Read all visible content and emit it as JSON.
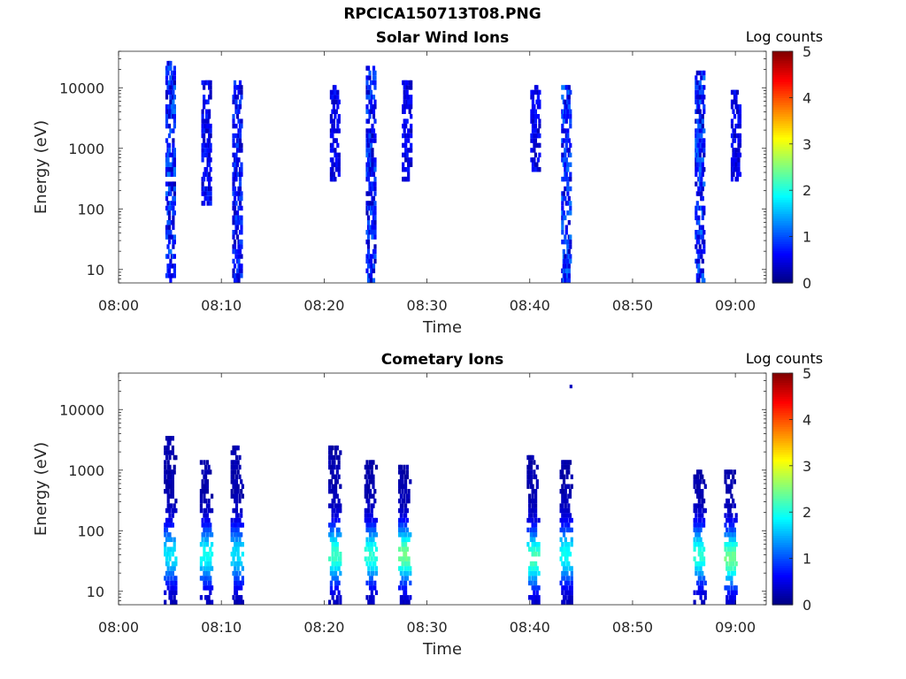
{
  "figure": {
    "suptitle": "RPCICA150713T08.PNG"
  },
  "chart_data": [
    {
      "type": "heatmap",
      "title": "Solar Wind Ions",
      "xlabel": "Time",
      "ylabel": "Energy (eV)",
      "xlim": [
        "08:00",
        "09:03"
      ],
      "x_ticks": [
        "08:00",
        "08:10",
        "08:20",
        "08:30",
        "08:40",
        "08:50",
        "09:00"
      ],
      "y_scale": "log",
      "ylim": [
        6,
        40000
      ],
      "y_ticks": [
        "10",
        "100",
        "1000",
        "10000"
      ],
      "colorbar": {
        "label": "Log counts",
        "min": 0,
        "max": 5,
        "ticks": [
          "0",
          "1",
          "2",
          "3",
          "4",
          "5"
        ],
        "colormap": "jet"
      },
      "bursts": [
        {
          "time": "08:05",
          "e_min": 6,
          "e_max": 26000,
          "peak_log_counts": 1.0
        },
        {
          "time": "08:08.5",
          "e_min": 110,
          "e_max": 13000,
          "peak_log_counts": 0.6
        },
        {
          "time": "08:11.5",
          "e_min": 6,
          "e_max": 14000,
          "peak_log_counts": 0.8
        },
        {
          "time": "08:21",
          "e_min": 300,
          "e_max": 11000,
          "peak_log_counts": 0.5
        },
        {
          "time": "08:24.5",
          "e_min": 6,
          "e_max": 25000,
          "peak_log_counts": 0.9
        },
        {
          "time": "08:28",
          "e_min": 300,
          "e_max": 14000,
          "peak_log_counts": 0.5
        },
        {
          "time": "08:40.5",
          "e_min": 400,
          "e_max": 12000,
          "peak_log_counts": 0.5
        },
        {
          "time": "08:43.5",
          "e_min": 6,
          "e_max": 12000,
          "peak_log_counts": 1.0
        },
        {
          "time": "08:56.5",
          "e_min": 6,
          "e_max": 20000,
          "peak_log_counts": 1.0
        },
        {
          "time": "09:00",
          "e_min": 300,
          "e_max": 9000,
          "peak_log_counts": 0.5
        }
      ]
    },
    {
      "type": "heatmap",
      "title": "Cometary Ions",
      "xlabel": "Time",
      "ylabel": "Energy (eV)",
      "xlim": [
        "08:00",
        "09:03"
      ],
      "x_ticks": [
        "08:00",
        "08:10",
        "08:20",
        "08:30",
        "08:40",
        "08:50",
        "09:00"
      ],
      "y_scale": "log",
      "ylim": [
        6,
        40000
      ],
      "y_ticks": [
        "10",
        "100",
        "1000",
        "10000"
      ],
      "colorbar": {
        "label": "Log counts",
        "min": 0,
        "max": 5,
        "ticks": [
          "0",
          "1",
          "2",
          "3",
          "4",
          "5"
        ],
        "colormap": "jet"
      },
      "bursts": [
        {
          "time": "08:05",
          "e_min": 6,
          "e_max": 3800,
          "peak_log_counts": 1.8,
          "peak_energy": 40
        },
        {
          "time": "08:08.5",
          "e_min": 6,
          "e_max": 1400,
          "peak_log_counts": 2.0,
          "peak_energy": 40
        },
        {
          "time": "08:11.5",
          "e_min": 6,
          "e_max": 2500,
          "peak_log_counts": 1.8,
          "peak_energy": 40
        },
        {
          "time": "08:21",
          "e_min": 6,
          "e_max": 2700,
          "peak_log_counts": 2.3,
          "peak_energy": 40
        },
        {
          "time": "08:24.5",
          "e_min": 6,
          "e_max": 1500,
          "peak_log_counts": 2.2,
          "peak_energy": 40
        },
        {
          "time": "08:27.8",
          "e_min": 6,
          "e_max": 1200,
          "peak_log_counts": 2.6,
          "peak_energy": 40
        },
        {
          "time": "08:40.3",
          "e_min": 6,
          "e_max": 1900,
          "peak_log_counts": 2.4,
          "peak_energy": 35
        },
        {
          "time": "08:43.5",
          "e_min": 6,
          "e_max": 1500,
          "peak_log_counts": 2.0,
          "peak_energy": 40
        },
        {
          "time": "08:56.5",
          "e_min": 6,
          "e_max": 1100,
          "peak_log_counts": 2.2,
          "peak_energy": 40
        },
        {
          "time": "08:59.5",
          "e_min": 6,
          "e_max": 1000,
          "peak_log_counts": 2.6,
          "peak_energy": 35
        }
      ],
      "isolated_points": [
        {
          "time": "08:44",
          "energy": 24000,
          "log_counts": 0.3
        }
      ]
    }
  ]
}
